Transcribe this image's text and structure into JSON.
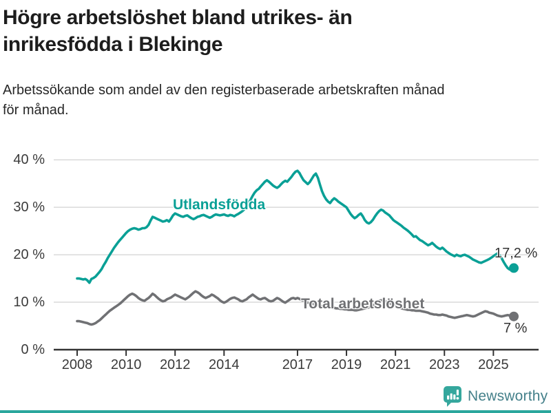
{
  "title": {
    "line1": "Högre arbetslöshet bland utrikes- än",
    "line2": "inrikesfödda i Blekinge"
  },
  "subtitle": {
    "line1": "Arbetssökande som andel av den registerbaserade arbetskraften månad",
    "line2": "för månad."
  },
  "footer": {
    "brand": "Newsworthy",
    "logo_icon": "bar-chart-speech-bubble-icon"
  },
  "colors": {
    "accent_teal": "#0aa096",
    "line_gray": "#707174",
    "grid": "#d9d9d9",
    "axis": "#333333",
    "title_text": "#1d1d1d",
    "subtitle_text": "#272727",
    "tick_text": "#3b3b3b",
    "value_text": "#333333",
    "brand_text": "#44808a",
    "logo_teal": "#35a79d",
    "bottom_bar": "#2aa79d"
  },
  "chart_data": {
    "type": "line",
    "x_unit": "month",
    "x_start": "2008-01",
    "x_end": "2025-11",
    "points_per_series": 215,
    "grid": "horizontal",
    "ylim": [
      0,
      40
    ],
    "xlim_years": [
      2007.05,
      2026.85
    ],
    "y_ticks": [
      {
        "value": 0,
        "label": "0 %"
      },
      {
        "value": 10,
        "label": "10 %"
      },
      {
        "value": 20,
        "label": "20 %"
      },
      {
        "value": 30,
        "label": "30 %"
      },
      {
        "value": 40,
        "label": "40 %"
      }
    ],
    "x_ticks": [
      {
        "value": 2008,
        "label": "2008"
      },
      {
        "value": 2010,
        "label": "2010"
      },
      {
        "value": 2012,
        "label": "2012"
      },
      {
        "value": 2014,
        "label": "2014"
      },
      {
        "value": 2017,
        "label": "2017"
      },
      {
        "value": 2019,
        "label": "2019"
      },
      {
        "value": 2021,
        "label": "2021"
      },
      {
        "value": 2023,
        "label": "2023"
      },
      {
        "value": 2025,
        "label": "2025"
      }
    ],
    "series": [
      {
        "name": "Utlandsfödda",
        "color": "#0aa096",
        "end_label": "17,2 %",
        "end_value": 17.2,
        "values": [
          15.0,
          15.0,
          14.9,
          14.8,
          14.9,
          14.6,
          14.1,
          14.9,
          15.1,
          15.4,
          15.9,
          16.4,
          17.0,
          17.8,
          18.5,
          19.3,
          20.0,
          20.7,
          21.4,
          22.0,
          22.6,
          23.1,
          23.6,
          24.1,
          24.6,
          25.0,
          25.3,
          25.5,
          25.6,
          25.5,
          25.3,
          25.4,
          25.6,
          25.6,
          25.8,
          26.3,
          27.2,
          28.0,
          27.8,
          27.6,
          27.4,
          27.2,
          27.0,
          27.1,
          27.3,
          27.0,
          27.6,
          28.3,
          28.7,
          28.5,
          28.3,
          28.1,
          28.0,
          28.2,
          28.3,
          28.0,
          27.7,
          27.5,
          27.7,
          28.0,
          28.1,
          28.3,
          28.4,
          28.2,
          28.0,
          27.8,
          28.0,
          28.3,
          28.5,
          28.4,
          28.3,
          28.4,
          28.5,
          28.3,
          28.2,
          28.4,
          28.3,
          28.1,
          28.4,
          28.6,
          28.9,
          29.2,
          29.6,
          30.2,
          30.9,
          31.6,
          32.4,
          33.1,
          33.6,
          33.9,
          34.4,
          34.9,
          35.4,
          35.7,
          35.4,
          35.0,
          34.6,
          34.3,
          34.1,
          34.4,
          34.9,
          35.3,
          35.6,
          35.4,
          35.9,
          36.4,
          37.0,
          37.5,
          37.7,
          37.2,
          36.4,
          35.7,
          35.3,
          34.9,
          35.3,
          36.0,
          36.7,
          37.1,
          36.2,
          34.8,
          33.4,
          32.4,
          31.7,
          31.2,
          30.9,
          31.5,
          31.9,
          31.6,
          31.2,
          30.9,
          30.6,
          30.3,
          30.0,
          29.3,
          28.6,
          28.1,
          27.7,
          28.0,
          28.4,
          28.7,
          28.1,
          27.3,
          26.8,
          26.6,
          26.9,
          27.4,
          28.1,
          28.7,
          29.2,
          29.5,
          29.3,
          28.9,
          28.6,
          28.3,
          27.8,
          27.3,
          27.0,
          26.7,
          26.4,
          26.1,
          25.7,
          25.4,
          25.1,
          24.7,
          24.3,
          23.8,
          23.9,
          23.5,
          23.1,
          22.9,
          22.6,
          22.3,
          22.0,
          22.2,
          22.5,
          22.1,
          21.7,
          21.4,
          21.2,
          21.5,
          21.1,
          20.7,
          20.4,
          20.1,
          19.9,
          19.7,
          20.0,
          19.8,
          19.7,
          19.9,
          20.0,
          19.8,
          19.6,
          19.3,
          19.0,
          18.8,
          18.6,
          18.4,
          18.3,
          18.5,
          18.7,
          18.9,
          19.1,
          19.4,
          19.7,
          20.0,
          20.3,
          19.9,
          19.3,
          18.5,
          17.8,
          17.2,
          16.9,
          16.9,
          17.2
        ]
      },
      {
        "name": "Total arbetslöshet",
        "color": "#707174",
        "end_label": "7 %",
        "end_value": 7.0,
        "values": [
          6.0,
          6.0,
          5.9,
          5.8,
          5.7,
          5.6,
          5.4,
          5.3,
          5.4,
          5.6,
          5.9,
          6.2,
          6.6,
          7.0,
          7.4,
          7.8,
          8.2,
          8.5,
          8.8,
          9.1,
          9.4,
          9.7,
          10.1,
          10.5,
          10.9,
          11.3,
          11.6,
          11.8,
          11.6,
          11.3,
          10.9,
          10.6,
          10.4,
          10.3,
          10.6,
          10.9,
          11.3,
          11.8,
          11.5,
          11.1,
          10.7,
          10.4,
          10.2,
          10.3,
          10.6,
          10.8,
          11.0,
          11.3,
          11.6,
          11.4,
          11.2,
          11.0,
          10.8,
          10.6,
          10.9,
          11.2,
          11.6,
          12.0,
          12.3,
          12.1,
          11.8,
          11.4,
          11.1,
          10.9,
          11.1,
          11.3,
          11.6,
          11.4,
          11.1,
          10.8,
          10.4,
          10.1,
          9.9,
          10.1,
          10.4,
          10.7,
          10.9,
          11.0,
          10.8,
          10.6,
          10.3,
          10.2,
          10.4,
          10.6,
          11.0,
          11.3,
          11.6,
          11.3,
          11.0,
          10.7,
          10.6,
          10.8,
          10.9,
          10.6,
          10.3,
          10.2,
          10.3,
          10.6,
          10.9,
          10.7,
          10.4,
          10.1,
          9.9,
          10.2,
          10.5,
          10.8,
          10.9,
          10.7,
          10.9,
          10.7,
          10.5,
          10.3,
          10.1,
          9.9,
          9.8,
          9.7,
          9.6,
          9.5,
          9.4,
          9.3,
          9.2,
          9.1,
          9.0,
          8.9,
          8.9,
          8.8,
          8.8,
          8.7,
          8.7,
          8.6,
          8.6,
          8.5,
          8.5,
          8.4,
          8.4,
          8.4,
          8.3,
          8.3,
          8.4,
          8.5,
          8.6,
          8.7,
          8.8,
          8.9,
          9.1,
          9.3,
          9.6,
          10.0,
          10.3,
          10.4,
          10.3,
          10.2,
          10.0,
          9.8,
          9.6,
          9.4,
          9.2,
          9.0,
          8.9,
          8.7,
          8.6,
          8.5,
          8.4,
          8.4,
          8.3,
          8.3,
          8.2,
          8.2,
          8.2,
          8.1,
          8.0,
          7.9,
          7.8,
          7.6,
          7.5,
          7.4,
          7.4,
          7.3,
          7.3,
          7.4,
          7.3,
          7.2,
          7.0,
          6.9,
          6.8,
          6.7,
          6.8,
          6.9,
          7.0,
          7.1,
          7.2,
          7.3,
          7.2,
          7.1,
          7.0,
          7.1,
          7.3,
          7.5,
          7.7,
          7.9,
          8.1,
          8.0,
          7.8,
          7.7,
          7.6,
          7.4,
          7.2,
          7.1,
          7.0,
          7.1,
          7.2,
          7.3,
          7.2,
          7.1,
          7.0
        ]
      }
    ]
  }
}
